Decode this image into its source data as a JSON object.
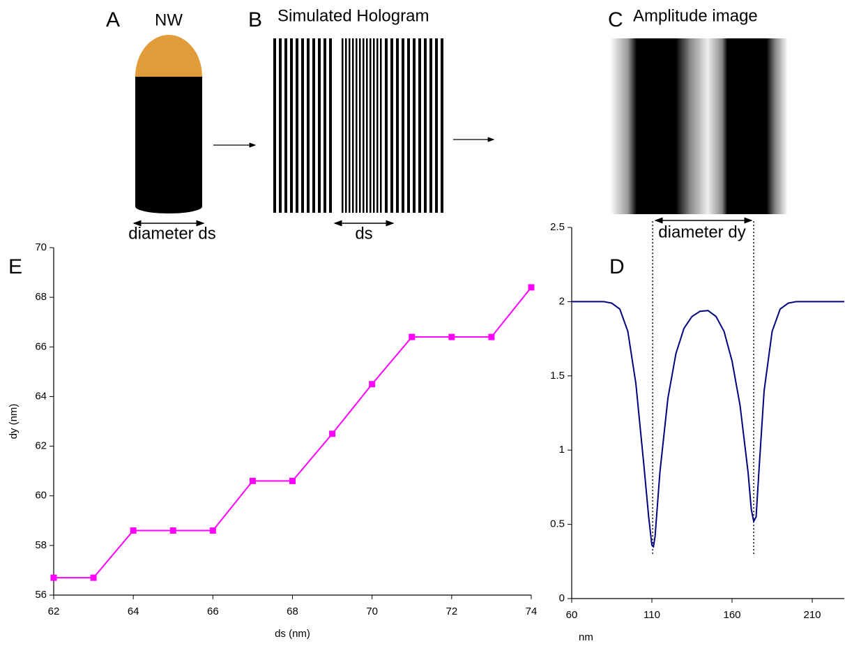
{
  "labels": {
    "a": "A",
    "nw": "NW",
    "diameter_ds": "diameter ds",
    "b": "B",
    "hologram": "Simulated Hologram",
    "ds": "ds",
    "c": "C",
    "amplitude": "Amplitude image",
    "diameter_dy": "diameter dy",
    "d": "D",
    "e": "E"
  },
  "chart_data": [
    {
      "type": "line",
      "x": [
        62,
        63,
        64,
        65,
        66,
        67,
        68,
        69,
        70,
        71,
        72,
        73,
        74
      ],
      "values": [
        56.7,
        56.7,
        58.6,
        58.6,
        58.6,
        60.6,
        60.6,
        62.5,
        64.5,
        66.4,
        66.4,
        66.4,
        68.4
      ],
      "color": "#ff00ff",
      "marker": "square",
      "x_label": "ds (nm)",
      "y_label": "dy (nm)",
      "xlim": [
        62,
        74
      ],
      "ylim": [
        56,
        70
      ],
      "xticks": [
        62,
        64,
        66,
        68,
        70,
        72,
        74
      ],
      "yticks": [
        56,
        58,
        60,
        62,
        64,
        66,
        68,
        70
      ]
    },
    {
      "type": "line",
      "x": [
        60,
        80,
        85,
        90,
        95,
        100,
        105,
        108,
        110,
        111,
        112,
        115,
        120,
        125,
        130,
        135,
        140,
        145,
        150,
        155,
        160,
        165,
        170,
        172,
        173.5,
        175,
        177,
        180,
        185,
        190,
        195,
        200,
        230
      ],
      "values": [
        2.0,
        2.0,
        1.99,
        1.95,
        1.8,
        1.45,
        0.9,
        0.55,
        0.36,
        0.35,
        0.42,
        0.85,
        1.35,
        1.65,
        1.82,
        1.9,
        1.935,
        1.94,
        1.9,
        1.8,
        1.6,
        1.3,
        0.85,
        0.6,
        0.52,
        0.55,
        0.9,
        1.4,
        1.8,
        1.95,
        1.99,
        2.0,
        2.0
      ],
      "color": "#000080",
      "x_label": "nm",
      "reference_lines": [
        110.5,
        173.5
      ],
      "xlim": [
        60,
        230
      ],
      "ylim": [
        0,
        2.5
      ],
      "xticks": [
        60,
        110,
        160,
        210
      ],
      "yticks": [
        0,
        0.5,
        1,
        1.5,
        2,
        2.5
      ]
    }
  ]
}
